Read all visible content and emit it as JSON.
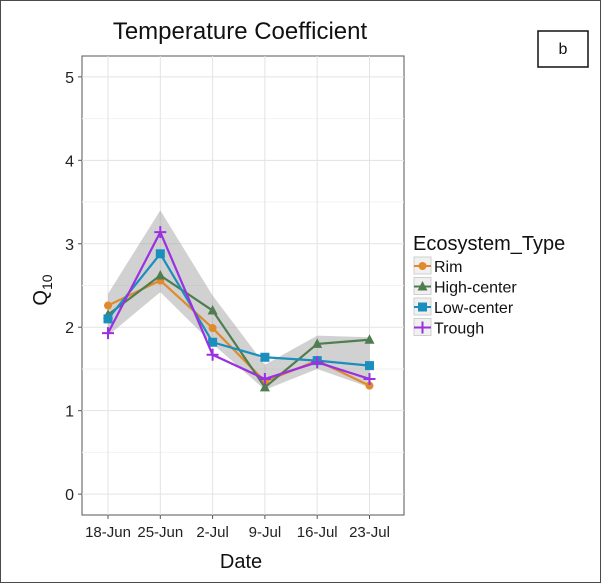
{
  "chart_data": {
    "type": "line",
    "title": "Temperature Coefficient",
    "panel_label": "b",
    "xlabel": "Date",
    "ylabel": "Q",
    "ylabel_sub": "10",
    "categories": [
      "18-Jun",
      "25-Jun",
      "2-Jul",
      "9-Jul",
      "16-Jul",
      "23-Jul"
    ],
    "ylim": [
      -0.25,
      5.25
    ],
    "yticks": [
      0,
      1,
      2,
      3,
      4,
      5
    ],
    "grid": true,
    "legend_title": "Ecosystem_Type",
    "legend_position": "right",
    "series": [
      {
        "name": "Rim",
        "color": "#e08a2c",
        "marker": "circle",
        "values": [
          2.26,
          2.56,
          1.99,
          1.35,
          1.6,
          1.3
        ]
      },
      {
        "name": "High-center",
        "color": "#4f7d4f",
        "marker": "triangle",
        "values": [
          2.15,
          2.62,
          2.2,
          1.28,
          1.8,
          1.85
        ]
      },
      {
        "name": "Low-center",
        "color": "#1a8fbd",
        "marker": "square",
        "values": [
          2.1,
          2.88,
          1.82,
          1.64,
          1.6,
          1.54
        ]
      },
      {
        "name": "Trough",
        "color": "#9b30e0",
        "marker": "plus",
        "values": [
          1.93,
          3.14,
          1.67,
          1.38,
          1.58,
          1.38
        ]
      }
    ],
    "confidence_band": {
      "color": "#9a9a9a",
      "lower": [
        1.9,
        2.42,
        1.8,
        1.25,
        1.5,
        1.28
      ],
      "upper": [
        2.4,
        3.4,
        2.38,
        1.55,
        1.9,
        1.88
      ]
    }
  }
}
